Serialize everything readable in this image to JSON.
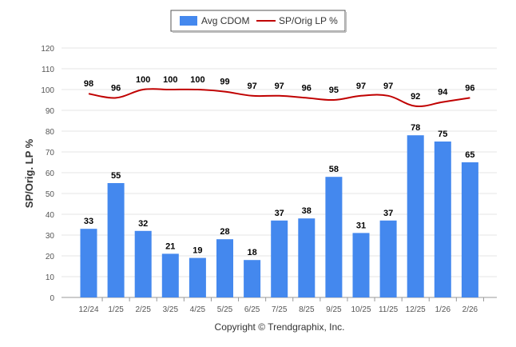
{
  "chart_data": {
    "type": "bar",
    "title": "",
    "xlabel": "",
    "ylabel": "SP/Orig. LP %",
    "ylim": [
      0,
      120
    ],
    "yticks": [
      0,
      10,
      20,
      30,
      40,
      50,
      60,
      70,
      80,
      90,
      100,
      110,
      120
    ],
    "grid": true,
    "legend_position": "top-center",
    "categories": [
      "12/24",
      "1/25",
      "2/25",
      "3/25",
      "4/25",
      "5/25",
      "6/25",
      "7/25",
      "8/25",
      "9/25",
      "10/25",
      "11/25",
      "12/25",
      "1/26",
      "2/26"
    ],
    "series": [
      {
        "name": "Avg CDOM",
        "type": "bar",
        "color": "#4488ee",
        "values": [
          33,
          55,
          32,
          21,
          19,
          28,
          18,
          37,
          38,
          58,
          31,
          37,
          78,
          75,
          65
        ]
      },
      {
        "name": "SP/Orig LP %",
        "type": "line",
        "color": "#c00000",
        "values": [
          98,
          96,
          100,
          100,
          100,
          99,
          97,
          97,
          96,
          95,
          97,
          97,
          92,
          94,
          96
        ]
      }
    ]
  },
  "footer": {
    "copyright": "Copyright © Trendgraphix, Inc."
  }
}
